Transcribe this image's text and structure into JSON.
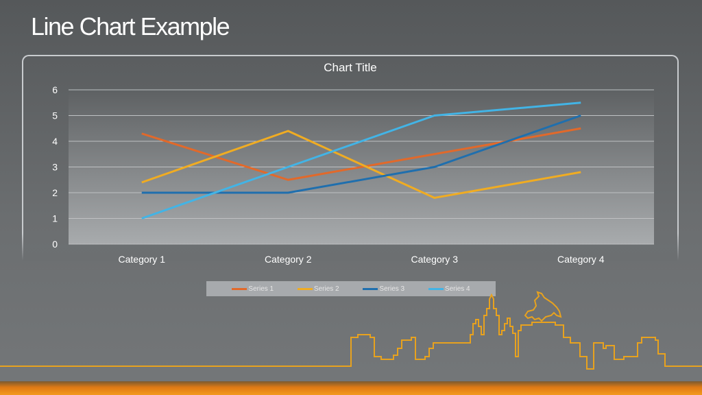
{
  "slide": {
    "title": "Line Chart Example"
  },
  "colors": {
    "series1": "#e2692a",
    "series2": "#f0ac22",
    "series3": "#1f6fae",
    "series4": "#42b4e6",
    "skyline": "#e8a21e"
  },
  "chart_data": {
    "type": "line",
    "title": "Chart Title",
    "categories": [
      "Category 1",
      "Category 2",
      "Category 3",
      "Category 4"
    ],
    "series": [
      {
        "name": "Series 1",
        "values": [
          4.3,
          2.5,
          3.5,
          4.5
        ]
      },
      {
        "name": "Series 2",
        "values": [
          2.4,
          4.4,
          1.8,
          2.8
        ]
      },
      {
        "name": "Series 3",
        "values": [
          2,
          2,
          3,
          5
        ]
      },
      {
        "name": "Series 4",
        "values": [
          1,
          3,
          5,
          5.5
        ]
      }
    ],
    "yticks": [
      "0",
      "1",
      "2",
      "3",
      "4",
      "5",
      "6"
    ],
    "ylim": [
      0,
      6
    ],
    "grid": true,
    "legend": "bottom"
  }
}
